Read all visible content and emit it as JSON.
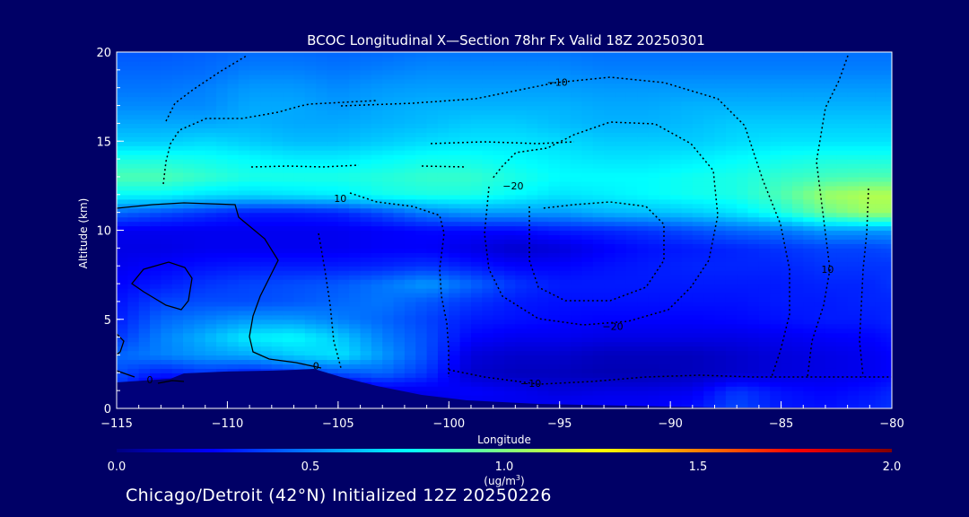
{
  "chart_data": {
    "type": "heatmap",
    "title": "BCOC Longitudinal X—Section 78hr  Fx Valid 18Z 20250301",
    "xlabel": "Longitude",
    "ylabel": "Altitude (km)",
    "xlim": [
      -115,
      -80
    ],
    "ylim": [
      0,
      20
    ],
    "x_ticks": [
      -115,
      -110,
      -105,
      -100,
      -95,
      -90,
      -85,
      -80
    ],
    "x_tick_labels": [
      "−115",
      "−110",
      "−105",
      "−100",
      "−95",
      "−90",
      "−85",
      "−80"
    ],
    "y_ticks": [
      0,
      5,
      10,
      15,
      20
    ],
    "y_tick_labels": [
      "0",
      "5",
      "10",
      "15",
      "20"
    ],
    "colorbar": {
      "min": 0.0,
      "max": 2.0,
      "ticks": [
        0.0,
        0.5,
        1.0,
        1.5,
        2.0
      ],
      "tick_labels": [
        "0.0",
        "0.5",
        "1.0",
        "1.5",
        "2.0"
      ],
      "unit_text": "(ug/m",
      "unit_sup": "3",
      "unit_close": ")",
      "colors": [
        "#000080",
        "#0000ff",
        "#0080ff",
        "#00ffff",
        "#80ff80",
        "#ffff00",
        "#ff8000",
        "#ff0000",
        "#800000"
      ]
    },
    "grid": false,
    "legend": "colorbar-bottom",
    "x": [
      -115,
      -113,
      -111,
      -109,
      -107,
      -105,
      -103,
      -101,
      -99,
      -97,
      -95,
      -93,
      -91,
      -89,
      -87,
      -85,
      -83,
      -81,
      -80
    ],
    "y": [
      0,
      1,
      2,
      3,
      4,
      5,
      6,
      7,
      8,
      9,
      10,
      11,
      12,
      13,
      14,
      15,
      16,
      17,
      18,
      19,
      20
    ],
    "z": [
      [
        0.3,
        0.08,
        0.08,
        0.08,
        0.08,
        0.08,
        0.15,
        0.18,
        0.2,
        0.22,
        0.25,
        0.25,
        0.25,
        0.28,
        0.4,
        0.3,
        0.28,
        0.32,
        0.35
      ],
      [
        0.35,
        0.1,
        0.1,
        0.1,
        0.1,
        0.1,
        0.2,
        0.22,
        0.25,
        0.22,
        0.18,
        0.2,
        0.2,
        0.22,
        0.35,
        0.28,
        0.25,
        0.28,
        0.32
      ],
      [
        0.4,
        0.3,
        0.35,
        0.3,
        0.35,
        0.4,
        0.45,
        0.35,
        0.15,
        0.12,
        0.12,
        0.1,
        0.1,
        0.12,
        0.15,
        0.18,
        0.2,
        0.22,
        0.25
      ],
      [
        0.45,
        0.5,
        0.55,
        0.58,
        0.65,
        0.7,
        0.55,
        0.4,
        0.18,
        0.15,
        0.15,
        0.12,
        0.12,
        0.12,
        0.15,
        0.18,
        0.2,
        0.22,
        0.25
      ],
      [
        0.35,
        0.5,
        0.6,
        0.72,
        0.75,
        0.65,
        0.5,
        0.4,
        0.25,
        0.22,
        0.22,
        0.2,
        0.2,
        0.2,
        0.2,
        0.22,
        0.24,
        0.25,
        0.28
      ],
      [
        0.3,
        0.45,
        0.5,
        0.55,
        0.55,
        0.5,
        0.45,
        0.38,
        0.3,
        0.28,
        0.26,
        0.25,
        0.25,
        0.25,
        0.26,
        0.28,
        0.3,
        0.3,
        0.32
      ],
      [
        0.28,
        0.38,
        0.4,
        0.4,
        0.42,
        0.45,
        0.48,
        0.42,
        0.35,
        0.3,
        0.28,
        0.28,
        0.28,
        0.28,
        0.28,
        0.3,
        0.3,
        0.32,
        0.32
      ],
      [
        0.25,
        0.3,
        0.35,
        0.38,
        0.4,
        0.42,
        0.48,
        0.55,
        0.45,
        0.35,
        0.3,
        0.3,
        0.3,
        0.3,
        0.3,
        0.3,
        0.32,
        0.32,
        0.35
      ],
      [
        0.22,
        0.25,
        0.28,
        0.3,
        0.3,
        0.3,
        0.32,
        0.35,
        0.3,
        0.25,
        0.25,
        0.28,
        0.3,
        0.32,
        0.32,
        0.32,
        0.35,
        0.35,
        0.35
      ],
      [
        0.2,
        0.2,
        0.22,
        0.22,
        0.22,
        0.22,
        0.24,
        0.24,
        0.2,
        0.15,
        0.18,
        0.24,
        0.28,
        0.3,
        0.32,
        0.35,
        0.38,
        0.38,
        0.4
      ],
      [
        0.22,
        0.22,
        0.22,
        0.22,
        0.22,
        0.22,
        0.24,
        0.26,
        0.26,
        0.26,
        0.3,
        0.32,
        0.35,
        0.4,
        0.45,
        0.48,
        0.55,
        0.55,
        0.55
      ],
      [
        0.45,
        0.4,
        0.35,
        0.3,
        0.3,
        0.32,
        0.4,
        0.5,
        0.55,
        0.55,
        0.55,
        0.6,
        0.62,
        0.65,
        0.7,
        0.8,
        0.95,
        1.05,
        1.05
      ],
      [
        0.75,
        0.75,
        0.7,
        0.68,
        0.7,
        0.72,
        0.78,
        0.8,
        0.8,
        0.75,
        0.7,
        0.72,
        0.75,
        0.78,
        0.8,
        0.9,
        1.05,
        1.1,
        1.1
      ],
      [
        0.9,
        0.9,
        0.85,
        0.8,
        0.8,
        0.8,
        0.82,
        0.85,
        0.85,
        0.8,
        0.75,
        0.75,
        0.75,
        0.78,
        0.8,
        0.85,
        0.88,
        0.9,
        0.9
      ],
      [
        0.8,
        0.8,
        0.78,
        0.75,
        0.72,
        0.72,
        0.75,
        0.78,
        0.78,
        0.75,
        0.72,
        0.7,
        0.7,
        0.72,
        0.75,
        0.78,
        0.8,
        0.8,
        0.8
      ],
      [
        0.65,
        0.65,
        0.68,
        0.65,
        0.62,
        0.62,
        0.65,
        0.68,
        0.7,
        0.7,
        0.68,
        0.65,
        0.65,
        0.65,
        0.68,
        0.7,
        0.7,
        0.7,
        0.7
      ],
      [
        0.58,
        0.58,
        0.58,
        0.6,
        0.58,
        0.58,
        0.6,
        0.62,
        0.65,
        0.65,
        0.62,
        0.6,
        0.6,
        0.62,
        0.65,
        0.65,
        0.65,
        0.65,
        0.65
      ],
      [
        0.52,
        0.52,
        0.52,
        0.58,
        0.58,
        0.55,
        0.58,
        0.6,
        0.6,
        0.6,
        0.6,
        0.58,
        0.58,
        0.6,
        0.6,
        0.6,
        0.6,
        0.6,
        0.6
      ],
      [
        0.48,
        0.48,
        0.5,
        0.55,
        0.55,
        0.52,
        0.55,
        0.56,
        0.56,
        0.56,
        0.56,
        0.55,
        0.55,
        0.55,
        0.55,
        0.55,
        0.55,
        0.55,
        0.55
      ],
      [
        0.45,
        0.45,
        0.46,
        0.5,
        0.5,
        0.48,
        0.5,
        0.52,
        0.52,
        0.52,
        0.52,
        0.5,
        0.5,
        0.5,
        0.5,
        0.5,
        0.5,
        0.5,
        0.5
      ],
      [
        0.42,
        0.42,
        0.44,
        0.46,
        0.46,
        0.45,
        0.46,
        0.48,
        0.48,
        0.48,
        0.48,
        0.47,
        0.47,
        0.47,
        0.47,
        0.47,
        0.47,
        0.47,
        0.47
      ]
    ],
    "contour_labels": [
      {
        "text": "0",
        "lon": -113.5,
        "alt": 1.6,
        "style": "solid"
      },
      {
        "text": "0",
        "lon": -106.0,
        "alt": 2.4,
        "style": "solid"
      },
      {
        "text": "10",
        "lon": -104.9,
        "alt": 11.8,
        "style": "dotted"
      },
      {
        "text": "−10",
        "lon": -95.1,
        "alt": 18.3,
        "style": "dotted"
      },
      {
        "text": "−20",
        "lon": -97.1,
        "alt": 12.5,
        "style": "dotted"
      },
      {
        "text": "−20",
        "lon": -92.6,
        "alt": 4.6,
        "style": "dotted"
      },
      {
        "text": "−10",
        "lon": -96.3,
        "alt": 1.4,
        "style": "dotted"
      },
      {
        "text": "10",
        "lon": -82.9,
        "alt": 7.8,
        "style": "dotted"
      }
    ]
  },
  "footer": {
    "text": "Chicago/Detroit (42°N) Initialized 12Z 20250226"
  }
}
